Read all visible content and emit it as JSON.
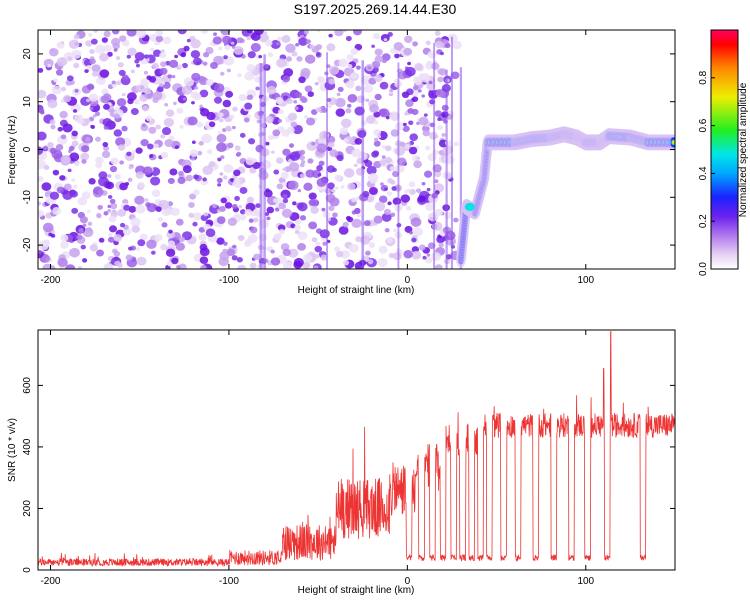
{
  "title": "S197.2025.269.14.44.E30",
  "chart_data": [
    {
      "type": "heatmap",
      "name": "spectrogram",
      "xlabel": "Height of straight line (km)",
      "ylabel": "Frequency (Hz)",
      "xlim": [
        -207,
        150
      ],
      "ylim": [
        -25,
        25
      ],
      "x_ticks": [
        -200,
        -100,
        0,
        100
      ],
      "y_ticks": [
        -20,
        -10,
        0,
        10,
        20
      ],
      "colorbar": {
        "label": "Normalized spectral amplitude",
        "range": [
          0,
          1
        ],
        "ticks": [
          0.0,
          0.2,
          0.4,
          0.6,
          0.8
        ]
      },
      "signal_track": [
        {
          "x": 30,
          "y": -23
        },
        {
          "x": 33,
          "y": -12
        },
        {
          "x": 38,
          "y": -13
        },
        {
          "x": 43,
          "y": -6
        },
        {
          "x": 45,
          "y": 1.5
        },
        {
          "x": 60,
          "y": 1.5
        },
        {
          "x": 70,
          "y": 2.2
        },
        {
          "x": 80,
          "y": 2.5
        },
        {
          "x": 88,
          "y": 3.2
        },
        {
          "x": 95,
          "y": 2.5
        },
        {
          "x": 100,
          "y": 1.5
        },
        {
          "x": 108,
          "y": 1.5
        },
        {
          "x": 113,
          "y": 2.8
        },
        {
          "x": 125,
          "y": 2.5
        },
        {
          "x": 135,
          "y": 1.5
        },
        {
          "x": 150,
          "y": 1.5
        }
      ]
    },
    {
      "type": "line",
      "name": "snr",
      "xlabel": "Height of straight line (km)",
      "ylabel": "SNR (10 * v/v)",
      "xlim": [
        -207,
        150
      ],
      "ylim": [
        0,
        780
      ],
      "x_ticks": [
        -200,
        -100,
        0,
        100
      ],
      "y_ticks": [
        0,
        200,
        400,
        600
      ],
      "color": "#ee3333",
      "baseline_segments": [
        {
          "x": [
            -207,
            -100
          ],
          "mean": 25,
          "noise": 12
        },
        {
          "x": [
            -100,
            -70
          ],
          "mean": 40,
          "noise": 25
        },
        {
          "x": [
            -70,
            -40
          ],
          "mean": 90,
          "noise": 60
        },
        {
          "x": [
            -40,
            -10
          ],
          "mean": 200,
          "noise": 100
        },
        {
          "x": [
            -10,
            5
          ],
          "mean": 260,
          "noise": 90
        },
        {
          "x": [
            5,
            20
          ],
          "mean": 330,
          "noise": 80
        },
        {
          "x": [
            20,
            40
          ],
          "mean": 420,
          "noise": 60
        },
        {
          "x": [
            40,
            150
          ],
          "mean": 470,
          "noise": 40
        }
      ],
      "dropouts_x": [
        1,
        8,
        14,
        20,
        26,
        31,
        36,
        41,
        46,
        54,
        62,
        72,
        82,
        92,
        101,
        112,
        132
      ],
      "dropout_level": 40,
      "spikes": [
        {
          "x": 114,
          "y": 775
        },
        {
          "x": 110,
          "y": 655
        }
      ]
    }
  ]
}
